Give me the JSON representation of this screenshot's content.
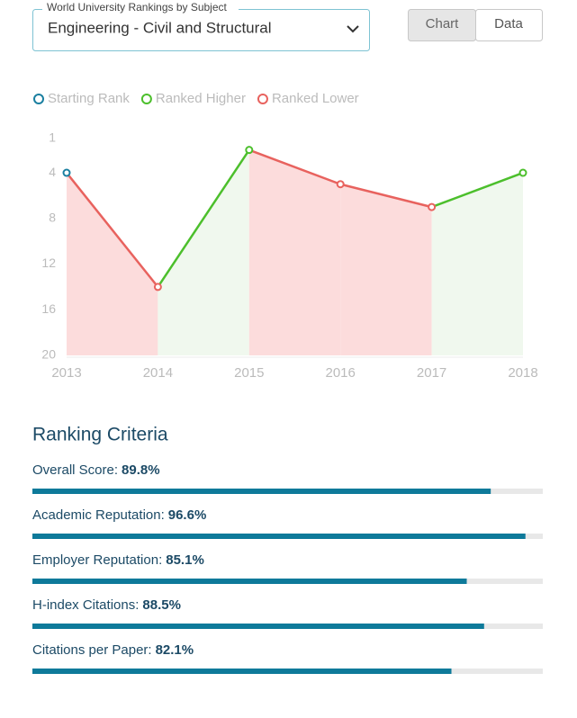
{
  "selector": {
    "label": "World University Rankings by Subject",
    "value": "Engineering - Civil and Structural"
  },
  "tabs": [
    {
      "label": "Chart",
      "active": true
    },
    {
      "label": "Data",
      "active": false
    }
  ],
  "chart_data": {
    "type": "line",
    "legend": [
      {
        "name": "Starting Rank",
        "color": "#1a7fa0"
      },
      {
        "name": "Ranked Higher",
        "color": "#4cbf2c"
      },
      {
        "name": "Ranked Lower",
        "color": "#e8625e"
      }
    ],
    "fill_colors": {
      "higher": "#f0f8ee",
      "lower": "#fcdcdc"
    },
    "categories": [
      "2013",
      "2014",
      "2015",
      "2016",
      "2017",
      "2018"
    ],
    "values": [
      4,
      14,
      2,
      5,
      7,
      4
    ],
    "ylim": [
      20,
      1
    ],
    "yticks": [
      1,
      4,
      8,
      12,
      16,
      20
    ]
  },
  "criteria": {
    "title": "Ranking Criteria",
    "xlim": [
      0,
      100
    ],
    "color": "#0e7a9a",
    "track": "#e8e8e8",
    "items": [
      {
        "name": "Overall Score:",
        "value": 89.8,
        "value_label": "89.8%"
      },
      {
        "name": "Academic Reputation:",
        "value": 96.6,
        "value_label": "96.6%"
      },
      {
        "name": "Employer Reputation:",
        "value": 85.1,
        "value_label": "85.1%"
      },
      {
        "name": "H-index Citations:",
        "value": 88.5,
        "value_label": "88.5%"
      },
      {
        "name": "Citations per Paper:",
        "value": 82.1,
        "value_label": "82.1%"
      }
    ]
  }
}
